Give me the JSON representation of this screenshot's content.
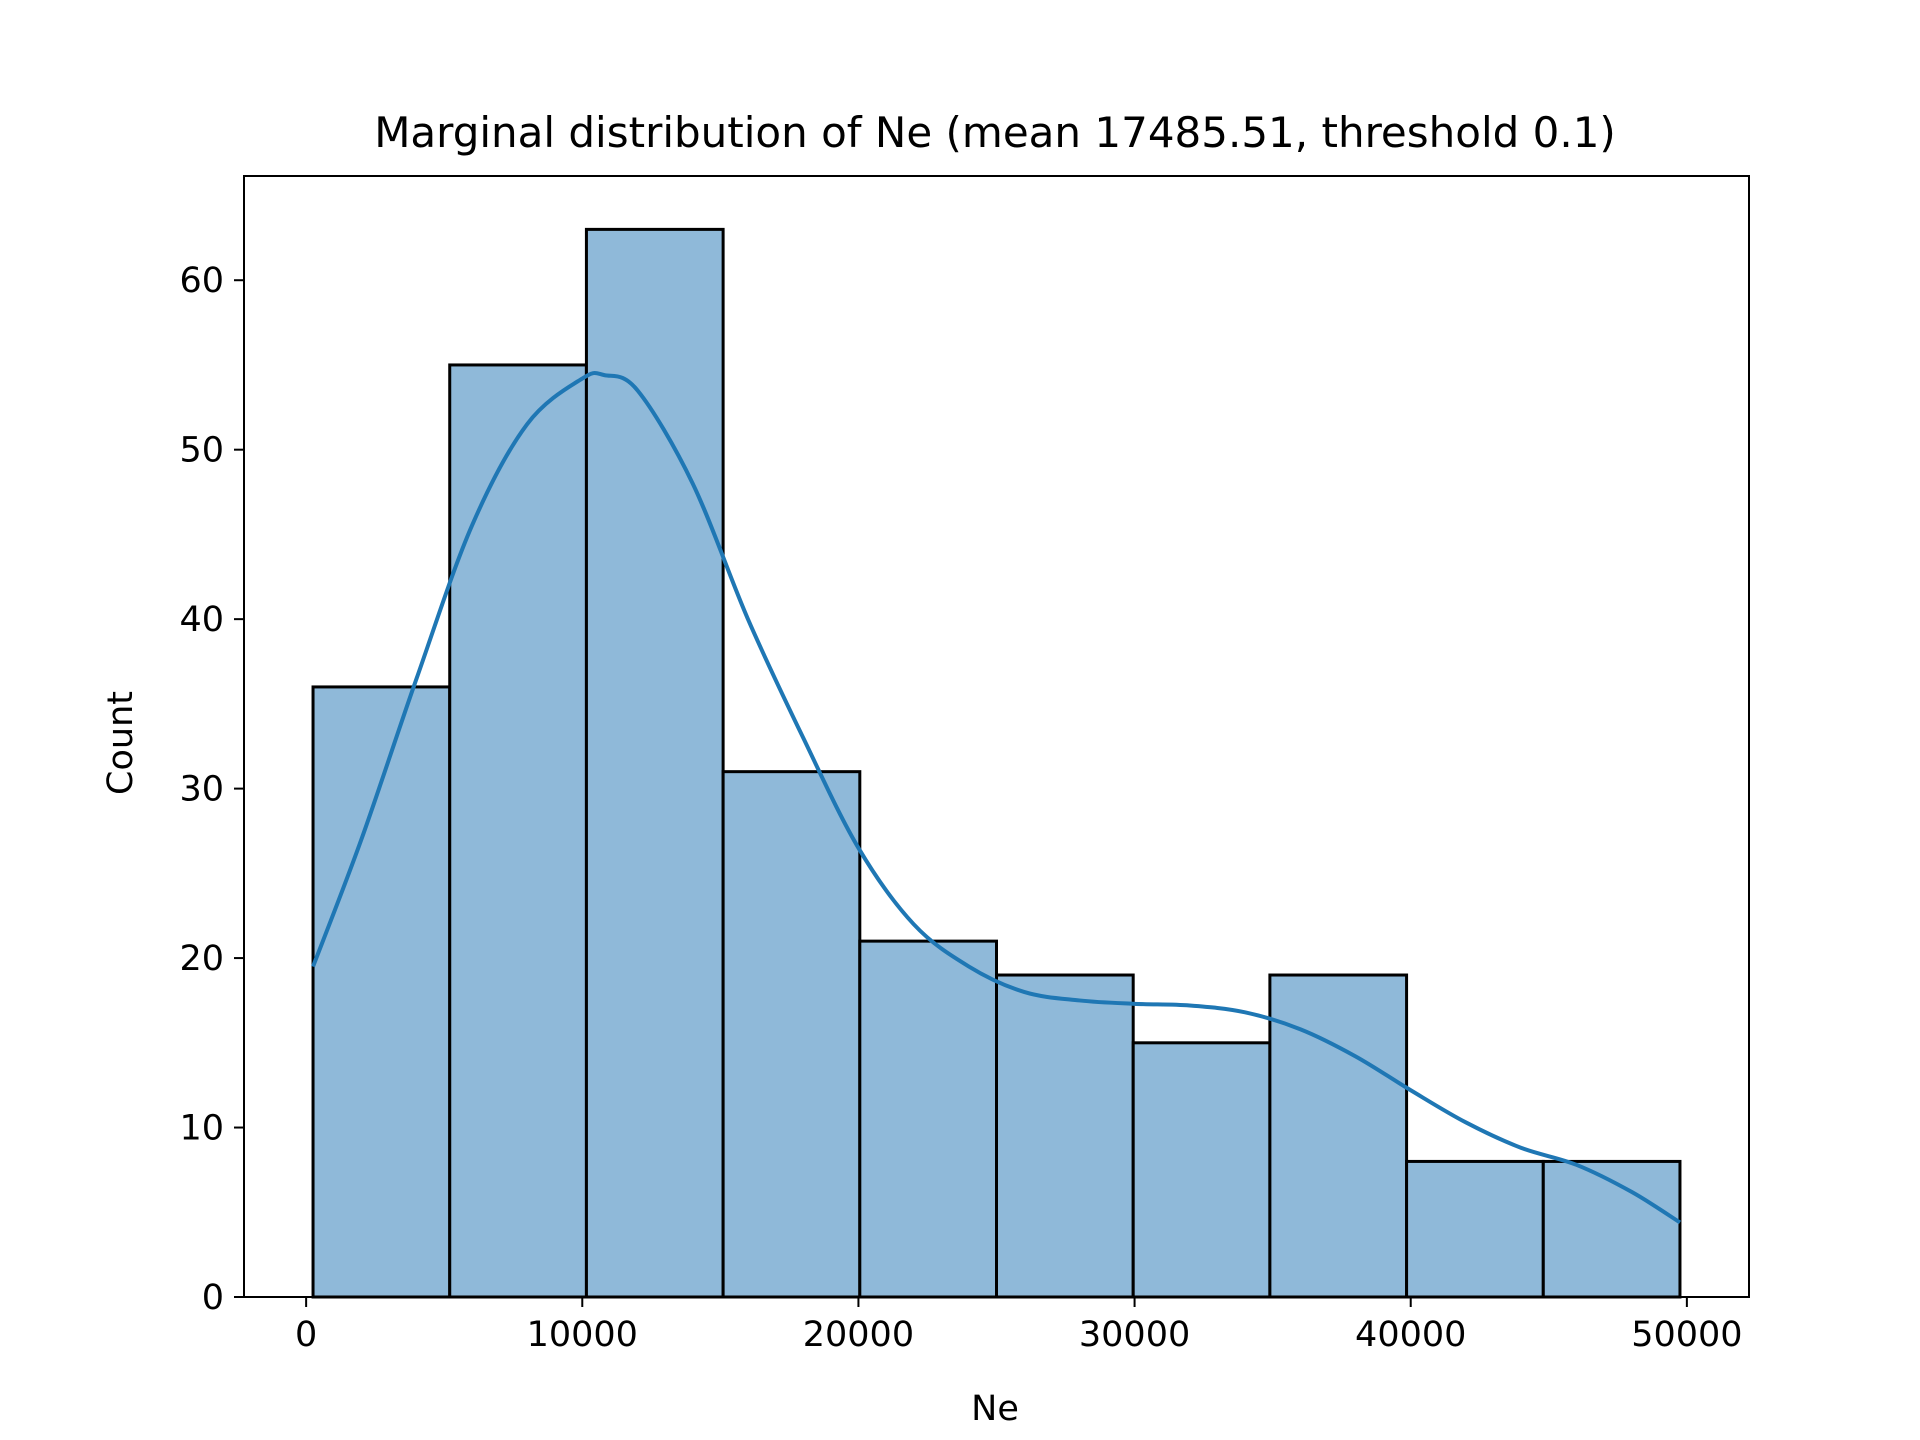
{
  "chart_data": {
    "type": "bar",
    "subtype": "histogram",
    "title": "Marginal distribution of Ne (mean 17485.51, threshold 0.1)",
    "xlabel": "Ne",
    "ylabel": "Count",
    "xlim": [
      -2250,
      52250
    ],
    "ylim": [
      0,
      66.15
    ],
    "xticks": [
      0,
      10000,
      20000,
      30000,
      40000,
      50000
    ],
    "yticks": [
      0,
      10,
      20,
      30,
      40,
      50,
      60
    ],
    "grid": false,
    "legend": "none",
    "bins": [
      {
        "x0": 250,
        "x1": 5200,
        "count": 36
      },
      {
        "x0": 5200,
        "x1": 10150,
        "count": 55
      },
      {
        "x0": 10150,
        "x1": 15100,
        "count": 63
      },
      {
        "x0": 15100,
        "x1": 20050,
        "count": 31
      },
      {
        "x0": 20050,
        "x1": 25000,
        "count": 21
      },
      {
        "x0": 25000,
        "x1": 29950,
        "count": 19
      },
      {
        "x0": 29950,
        "x1": 34900,
        "count": 15
      },
      {
        "x0": 34900,
        "x1": 39850,
        "count": 19
      },
      {
        "x0": 39850,
        "x1": 44800,
        "count": 8
      },
      {
        "x0": 44800,
        "x1": 49750,
        "count": 8
      }
    ],
    "kde": {
      "x": [
        250,
        2000,
        4000,
        6000,
        8000,
        10000,
        10800,
        12000,
        14000,
        16000,
        18000,
        20000,
        22000,
        24000,
        26000,
        28000,
        30000,
        32000,
        34000,
        36000,
        38000,
        40000,
        42000,
        44000,
        46000,
        48000,
        49750
      ],
      "y": [
        19.5,
        27,
        36.5,
        45.5,
        51.5,
        54.2,
        54.4,
        53.5,
        48,
        40,
        33,
        26.5,
        22,
        19.5,
        18,
        17.5,
        17.3,
        17.2,
        16.8,
        15.8,
        14.2,
        12.2,
        10.3,
        8.8,
        7.8,
        6.2,
        4.4
      ]
    },
    "colors": {
      "bar_fill": "#8fb9d9",
      "bar_edge": "#000000",
      "kde_line": "#1f77b4"
    }
  }
}
